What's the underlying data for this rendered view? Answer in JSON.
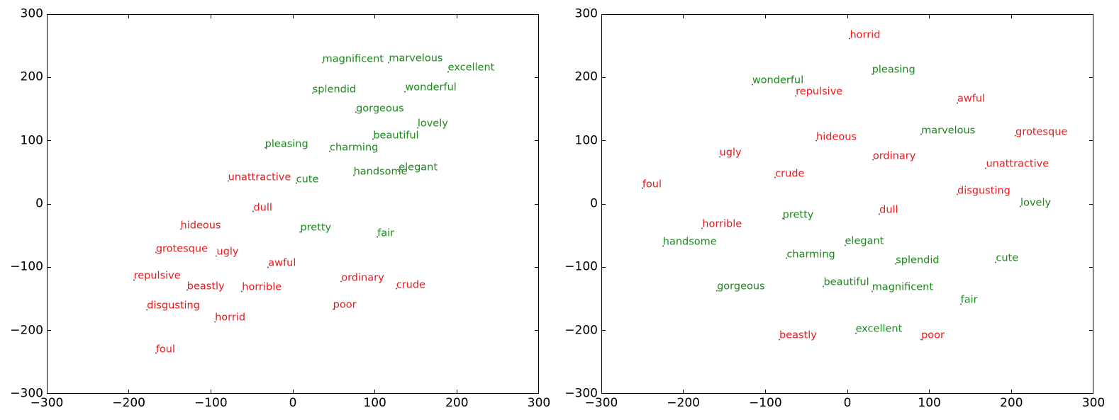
{
  "colors": {
    "positive": "#1a8a1a",
    "negative": "#e8191c",
    "axis": "#000000"
  },
  "chart_data": [
    {
      "type": "scatter",
      "title": "",
      "xlabel": "",
      "ylabel": "",
      "xlim": [
        -300,
        300
      ],
      "ylim": [
        -300,
        300
      ],
      "grid": false,
      "legend": null,
      "xticks": [
        -300,
        -200,
        -100,
        0,
        100,
        200,
        300
      ],
      "yticks": [
        -300,
        -200,
        -100,
        0,
        100,
        200,
        300
      ],
      "xtick_labels": [
        "−300",
        "−200",
        "−100",
        "0",
        "100",
        "200",
        "300"
      ],
      "ytick_labels": [
        "−300",
        "−200",
        "−100",
        "0",
        "100",
        "200",
        "300"
      ],
      "series": [
        {
          "name": "positive",
          "color": "#1a8a1a",
          "points": [
            {
              "label": "magnificent",
              "x": 36,
              "y": 224
            },
            {
              "label": "marvelous",
              "x": 117,
              "y": 225
            },
            {
              "label": "excellent",
              "x": 189,
              "y": 210
            },
            {
              "label": "splendid",
              "x": 24,
              "y": 176
            },
            {
              "label": "wonderful",
              "x": 137,
              "y": 179
            },
            {
              "label": "gorgeous",
              "x": 77,
              "y": 146
            },
            {
              "label": "lovely",
              "x": 152,
              "y": 122
            },
            {
              "label": "beautiful",
              "x": 98,
              "y": 103
            },
            {
              "label": "pleasing",
              "x": -34,
              "y": 90
            },
            {
              "label": "charming",
              "x": 45,
              "y": 84
            },
            {
              "label": "elegant",
              "x": 129,
              "y": 53
            },
            {
              "label": "handsome",
              "x": 74,
              "y": 46
            },
            {
              "label": "cute",
              "x": 4,
              "y": 34
            },
            {
              "label": "pretty",
              "x": 9,
              "y": -43
            },
            {
              "label": "fair",
              "x": 103,
              "y": -51
            }
          ]
        },
        {
          "name": "negative",
          "color": "#e8191c",
          "points": [
            {
              "label": "unattractive",
              "x": -79,
              "y": 37
            },
            {
              "label": "dull",
              "x": -48,
              "y": -11
            },
            {
              "label": "hideous",
              "x": -137,
              "y": -39
            },
            {
              "label": "grotesque",
              "x": -167,
              "y": -76
            },
            {
              "label": "ugly",
              "x": -93,
              "y": -81
            },
            {
              "label": "awful",
              "x": -30,
              "y": -99
            },
            {
              "label": "repulsive",
              "x": -194,
              "y": -119
            },
            {
              "label": "ordinary",
              "x": 59,
              "y": -122
            },
            {
              "label": "crude",
              "x": 126,
              "y": -133
            },
            {
              "label": "beastly",
              "x": -129,
              "y": -135
            },
            {
              "label": "horrible",
              "x": -62,
              "y": -137
            },
            {
              "label": "disgusting",
              "x": -178,
              "y": -166
            },
            {
              "label": "poor",
              "x": 49,
              "y": -165
            },
            {
              "label": "horrid",
              "x": -95,
              "y": -185
            },
            {
              "label": "foul",
              "x": -167,
              "y": -235
            }
          ]
        }
      ]
    },
    {
      "type": "scatter",
      "title": "",
      "xlabel": "",
      "ylabel": "",
      "xlim": [
        -300,
        300
      ],
      "ylim": [
        -300,
        300
      ],
      "grid": false,
      "legend": null,
      "xticks": [
        -300,
        -200,
        -100,
        0,
        100,
        200,
        300
      ],
      "yticks": [
        -300,
        -200,
        -100,
        0,
        100,
        200,
        300
      ],
      "xtick_labels": [
        "−300",
        "−200",
        "−100",
        "0",
        "100",
        "200",
        "300"
      ],
      "ytick_labels": [
        "−300",
        "−200",
        "−100",
        "0",
        "100",
        "200",
        "300"
      ],
      "series": [
        {
          "name": "positive",
          "color": "#1a8a1a",
          "points": [
            {
              "label": "pleasing",
              "x": 30,
              "y": 207
            },
            {
              "label": "wonderful",
              "x": -116,
              "y": 190
            },
            {
              "label": "marvelous",
              "x": 90,
              "y": 111
            },
            {
              "label": "lovely",
              "x": 211,
              "y": -3
            },
            {
              "label": "pretty",
              "x": -79,
              "y": -22
            },
            {
              "label": "elegant",
              "x": -3,
              "y": -64
            },
            {
              "label": "handsome",
              "x": -225,
              "y": -65
            },
            {
              "label": "charming",
              "x": -74,
              "y": -85
            },
            {
              "label": "cute",
              "x": 181,
              "y": -91
            },
            {
              "label": "splendid",
              "x": 59,
              "y": -94
            },
            {
              "label": "beautiful",
              "x": -29,
              "y": -129
            },
            {
              "label": "gorgeous",
              "x": -159,
              "y": -136
            },
            {
              "label": "magnificent",
              "x": 30,
              "y": -137
            },
            {
              "label": "fair",
              "x": 138,
              "y": -157
            },
            {
              "label": "excellent",
              "x": 10,
              "y": -203
            }
          ]
        },
        {
          "name": "negative",
          "color": "#e8191c",
          "points": [
            {
              "label": "horrid",
              "x": 3,
              "y": 262
            },
            {
              "label": "repulsive",
              "x": -63,
              "y": 172
            },
            {
              "label": "awful",
              "x": 134,
              "y": 161
            },
            {
              "label": "grotesque",
              "x": 205,
              "y": 109
            },
            {
              "label": "hideous",
              "x": -38,
              "y": 101
            },
            {
              "label": "ugly",
              "x": -156,
              "y": 76
            },
            {
              "label": "ordinary",
              "x": 31,
              "y": 71
            },
            {
              "label": "unattractive",
              "x": 169,
              "y": 58
            },
            {
              "label": "crude",
              "x": -88,
              "y": 43
            },
            {
              "label": "foul",
              "x": -250,
              "y": 26
            },
            {
              "label": "disgusting",
              "x": 134,
              "y": 16
            },
            {
              "label": "dull",
              "x": 39,
              "y": -15
            },
            {
              "label": "horrible",
              "x": -177,
              "y": -37
            },
            {
              "label": "beastly",
              "x": -83,
              "y": -213
            },
            {
              "label": "poor",
              "x": 90,
              "y": -213
            }
          ]
        }
      ]
    }
  ]
}
